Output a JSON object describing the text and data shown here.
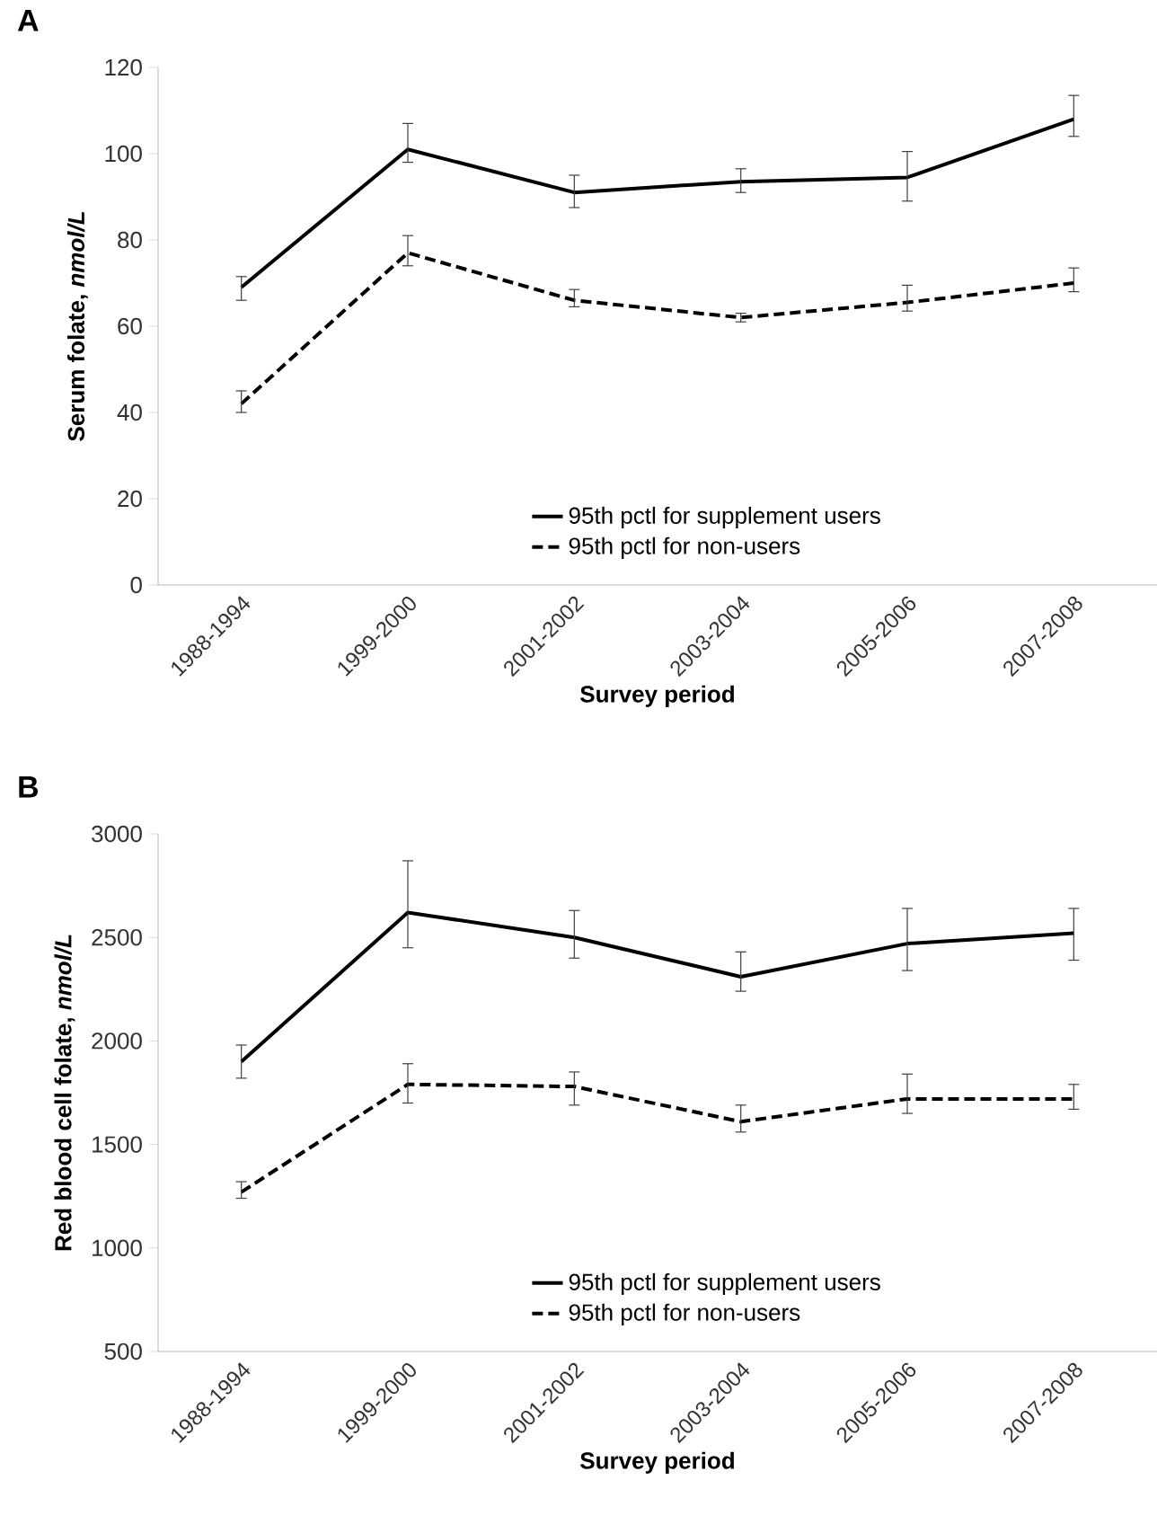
{
  "chart_data": [
    {
      "type": "line",
      "title": "A",
      "xlabel": "Survey period",
      "ylabel": "Serum folate, *nmol/L*",
      "categories": [
        "1988-1994",
        "1999-2000",
        "2001-2002",
        "2003-2004",
        "2005-2006",
        "2007-2008"
      ],
      "ylim": [
        0,
        120
      ],
      "yticks": [
        0,
        20,
        40,
        60,
        80,
        100,
        120
      ],
      "legend": "bottom",
      "grid": false,
      "marker": "none",
      "series": [
        {
          "name": "95th pctl for supplement users",
          "color": "#000000",
          "line_style": "solid",
          "values": [
            69,
            101,
            91,
            93.5,
            94.5,
            108
          ],
          "errors": [
            [
              66,
              71.5
            ],
            [
              98,
              107
            ],
            [
              87.5,
              95
            ],
            [
              91,
              96.5
            ],
            [
              89,
              100.5
            ],
            [
              104,
              113.5
            ]
          ]
        },
        {
          "name": "95th pctl for non-users",
          "color": "#000000",
          "line_style": "dashed",
          "values": [
            42,
            77,
            66,
            62,
            65.5,
            70
          ],
          "errors": [
            [
              40,
              45
            ],
            [
              74,
              81
            ],
            [
              64.5,
              68.5
            ],
            [
              61,
              63
            ],
            [
              63.5,
              69.5
            ],
            [
              68,
              73.5
            ]
          ]
        }
      ]
    },
    {
      "type": "line",
      "title": "B",
      "xlabel": "Survey period",
      "ylabel": "Red blood cell folate, *nmol/L*",
      "categories": [
        "1988-1994",
        "1999-2000",
        "2001-2002",
        "2003-2004",
        "2005-2006",
        "2007-2008"
      ],
      "ylim": [
        500,
        3000
      ],
      "yticks": [
        500,
        1000,
        1500,
        2000,
        2500,
        3000
      ],
      "legend": "bottom",
      "grid": false,
      "marker": "none",
      "series": [
        {
          "name": "95th pctl for supplement users",
          "color": "#000000",
          "line_style": "solid",
          "values": [
            1900,
            2620,
            2500,
            2310,
            2470,
            2520
          ],
          "errors": [
            [
              1820,
              1980
            ],
            [
              2450,
              2870
            ],
            [
              2400,
              2630
            ],
            [
              2240,
              2430
            ],
            [
              2340,
              2640
            ],
            [
              2390,
              2640
            ]
          ]
        },
        {
          "name": "95th pctl for non-users",
          "color": "#000000",
          "line_style": "dashed",
          "values": [
            1270,
            1790,
            1780,
            1610,
            1720,
            1720
          ],
          "errors": [
            [
              1240,
              1320
            ],
            [
              1700,
              1890
            ],
            [
              1690,
              1850
            ],
            [
              1560,
              1690
            ],
            [
              1650,
              1840
            ],
            [
              1670,
              1790
            ]
          ]
        }
      ]
    }
  ]
}
